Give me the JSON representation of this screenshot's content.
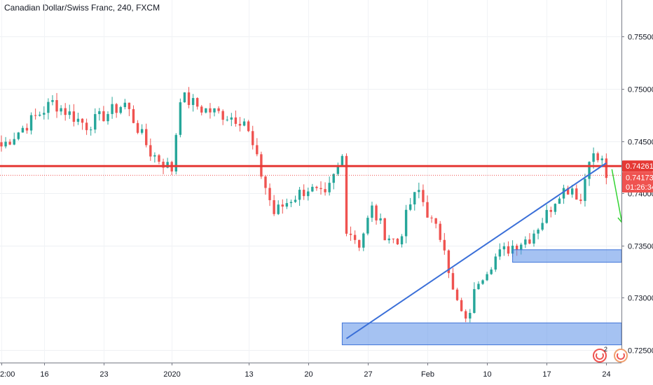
{
  "header": {
    "title": "Canadian Dollar/Swiss Franc, 240, FXCM"
  },
  "chart_data": {
    "type": "candlestick",
    "symbol": "Canadian Dollar/Swiss Franc",
    "interval": "240",
    "source": "FXCM",
    "y_axis": {
      "ticks": [
        "0.75500",
        "0.75000",
        "0.74500",
        "0.74000",
        "0.73500",
        "0.73000",
        "0.72500"
      ],
      "tick_values": [
        0.755,
        0.75,
        0.745,
        0.74,
        0.735,
        0.73,
        0.725
      ],
      "range": [
        0.7238,
        0.7585
      ]
    },
    "x_axis": {
      "ticks": [
        "2:00",
        "16",
        "23",
        "2020",
        "13",
        "20",
        "27",
        "Feb",
        "10",
        "17",
        "24"
      ]
    },
    "price_flags": [
      {
        "label": "0.74261",
        "value": 0.74261,
        "color": "#e53935"
      },
      {
        "label": "0.74173",
        "value": 0.74173,
        "color": "#ef5350"
      },
      {
        "label": "01:26:34",
        "value": 0.7399,
        "color": "#ef5350"
      }
    ],
    "colors": {
      "up": "#26a69a",
      "down": "#ef5350",
      "resistance": "#e53935",
      "trendline": "#3a6fd8",
      "zone": "#5b8fe8",
      "arrow": "#33d433"
    },
    "annotations": {
      "resistance_level": 0.74261,
      "current_price": 0.74173,
      "trendline": {
        "from": [
          81,
          0.7261
        ],
        "to": [
          142,
          0.7429
        ]
      },
      "zones": [
        {
          "x_from": 120,
          "y_from": 0.7334,
          "y_to": 0.7346
        },
        {
          "x_from": 80,
          "y_from": 0.7255,
          "y_to": 0.7276
        }
      ],
      "arrow": {
        "from": [
          142,
          0.7423
        ],
        "to": [
          146,
          0.7372
        ]
      }
    },
    "anchors": [
      [
        0,
        0.7445
      ],
      [
        6,
        0.7466
      ],
      [
        12,
        0.7487
      ],
      [
        20,
        0.7465
      ],
      [
        29,
        0.7486
      ],
      [
        35,
        0.7439
      ],
      [
        40,
        0.7423
      ],
      [
        42,
        0.7493
      ],
      [
        47,
        0.7481
      ],
      [
        57,
        0.747
      ],
      [
        60,
        0.7431
      ],
      [
        64,
        0.7381
      ],
      [
        68,
        0.7395
      ],
      [
        72,
        0.7405
      ],
      [
        76,
        0.7395
      ],
      [
        80,
        0.7435
      ],
      [
        81,
        0.7368
      ],
      [
        84,
        0.7352
      ],
      [
        87,
        0.7385
      ],
      [
        90,
        0.7362
      ],
      [
        93,
        0.7352
      ],
      [
        96,
        0.739
      ],
      [
        98,
        0.7402
      ],
      [
        101,
        0.7372
      ],
      [
        104,
        0.7352
      ],
      [
        106,
        0.7305
      ],
      [
        109,
        0.7275
      ],
      [
        112,
        0.7318
      ],
      [
        116,
        0.7339
      ],
      [
        120,
        0.735
      ],
      [
        124,
        0.7358
      ],
      [
        128,
        0.738
      ],
      [
        131,
        0.7402
      ],
      [
        134,
        0.7406
      ],
      [
        136,
        0.7393
      ],
      [
        138,
        0.7437
      ],
      [
        141,
        0.743
      ],
      [
        142,
        0.7417
      ]
    ],
    "candle_count": 143
  },
  "icons": [
    {
      "name": "event-flag-icon",
      "badge": "2"
    },
    {
      "name": "event-flag-icon-2",
      "badge": ""
    }
  ]
}
